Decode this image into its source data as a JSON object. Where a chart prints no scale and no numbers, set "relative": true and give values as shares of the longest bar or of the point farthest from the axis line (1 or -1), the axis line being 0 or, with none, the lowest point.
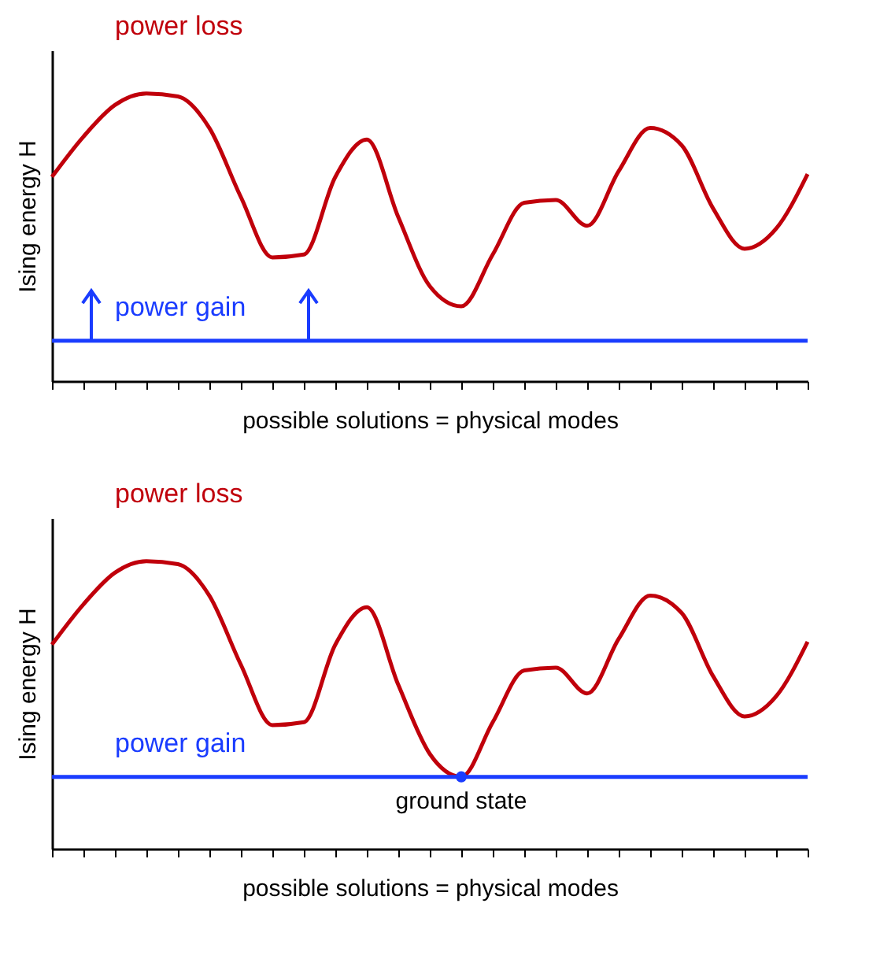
{
  "chart_data": [
    {
      "type": "line",
      "relative": true,
      "xlabel": "possible solutions = physical modes",
      "ylabel": "Ising energy H",
      "categories": [
        null,
        null,
        null,
        null,
        null,
        null,
        null,
        null,
        null,
        null,
        null,
        null,
        null,
        null,
        null,
        null,
        null,
        null,
        null,
        null,
        null,
        null,
        null,
        null,
        null
      ],
      "series": [
        {
          "name": "power loss",
          "color": "#c0000b",
          "values": [
            0.71,
            0.85,
            0.96,
            1,
            0.99,
            0.88,
            0.64,
            0.43,
            0.44,
            0.71,
            0.84,
            0.57,
            0.33,
            0.26,
            0.44,
            0.62,
            0.63,
            0.54,
            0.73,
            0.88,
            0.82,
            0.6,
            0.46,
            0.53,
            0.72
          ]
        },
        {
          "name": "power gain",
          "color": "#1a3cff",
          "values": [
            0.14,
            0.14,
            0.14,
            0.14,
            0.14,
            0.14,
            0.14,
            0.14,
            0.14,
            0.14,
            0.14,
            0.14,
            0.14,
            0.14,
            0.14,
            0.14,
            0.14,
            0.14,
            0.14,
            0.14,
            0.14,
            0.14,
            0.14,
            0.14,
            0.14
          ]
        }
      ],
      "marker": "none",
      "grid": false,
      "tick_labels": false
    },
    {
      "type": "line",
      "relative": true,
      "xlabel": "possible solutions = physical modes",
      "ylabel": "Ising energy H",
      "categories": [
        null,
        null,
        null,
        null,
        null,
        null,
        null,
        null,
        null,
        null,
        null,
        null,
        null,
        null,
        null,
        null,
        null,
        null,
        null,
        null,
        null,
        null,
        null,
        null,
        null
      ],
      "series": [
        {
          "name": "power loss",
          "color": "#c0000b",
          "values": [
            0.71,
            0.85,
            0.96,
            1,
            0.99,
            0.88,
            0.64,
            0.43,
            0.44,
            0.71,
            0.84,
            0.57,
            0.33,
            0.25,
            0.44,
            0.62,
            0.63,
            0.54,
            0.73,
            0.88,
            0.82,
            0.6,
            0.46,
            0.53,
            0.72
          ]
        },
        {
          "name": "power gain",
          "color": "#1a3cff",
          "values": [
            0.25,
            0.25,
            0.25,
            0.25,
            0.25,
            0.25,
            0.25,
            0.25,
            0.25,
            0.25,
            0.25,
            0.25,
            0.25,
            0.25,
            0.25,
            0.25,
            0.25,
            0.25,
            0.25,
            0.25,
            0.25,
            0.25,
            0.25,
            0.25,
            0.25
          ]
        },
        {
          "type": "scatter",
          "color": "#1a3cff",
          "values": [
            null,
            null,
            null,
            null,
            null,
            null,
            null,
            null,
            null,
            null,
            null,
            null,
            null,
            0.25,
            null,
            null,
            null,
            null,
            null,
            null,
            null,
            null,
            null,
            null,
            null
          ]
        }
      ],
      "annotations": [
        {
          "text": "ground state",
          "y": 0.25
        }
      ],
      "grid": false,
      "tick_labels": false
    }
  ]
}
